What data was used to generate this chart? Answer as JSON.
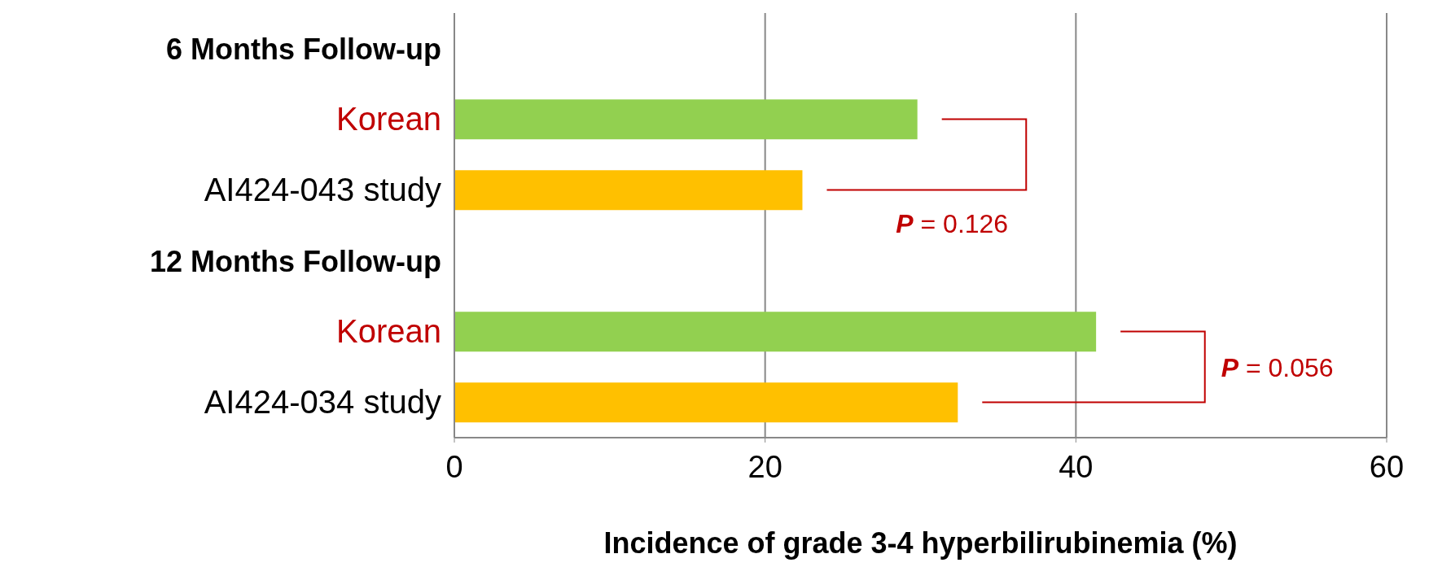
{
  "chart_data": {
    "type": "bar",
    "orientation": "horizontal",
    "categories": [
      "6 Months Follow-up",
      "Korean",
      "AI424-043 study",
      "12 Months Follow-up",
      "Korean",
      "AI424-034 study"
    ],
    "values": [
      null,
      29.8,
      22.4,
      null,
      41.3,
      32.4
    ],
    "colors": [
      "#92d050",
      "#92d050",
      "#ffc000",
      "#92d050",
      "#92d050",
      "#ffc000"
    ],
    "xlim": [
      0,
      60
    ],
    "xticks": [
      0,
      20,
      40,
      60
    ],
    "grid": "x",
    "xlabel": "Incidence of grade 3-4 hyperbilirubinemia (%)",
    "annotations": [
      "P = 0.126",
      "P = 0.056"
    ]
  }
}
